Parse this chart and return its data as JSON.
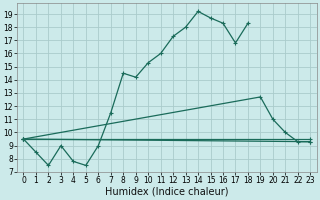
{
  "xlabel": "Humidex (Indice chaleur)",
  "background_color": "#cceaea",
  "grid_color": "#aacccc",
  "line_color": "#1a6b5a",
  "lines": [
    {
      "x": [
        0,
        1,
        2,
        3,
        4,
        5,
        6,
        7,
        8,
        9,
        10,
        11,
        12,
        13,
        14,
        15,
        16,
        17,
        18
      ],
      "y": [
        9.5,
        8.5,
        7.5,
        9.0,
        7.8,
        7.5,
        9.0,
        11.5,
        14.5,
        14.2,
        15.3,
        16.0,
        17.3,
        18.0,
        19.2,
        18.7,
        18.3,
        16.8,
        18.3
      ]
    },
    {
      "x": [
        0,
        19,
        20,
        21,
        22,
        23
      ],
      "y": [
        9.5,
        12.7,
        11.0,
        10.0,
        9.3,
        9.3
      ]
    },
    {
      "x": [
        0,
        23
      ],
      "y": [
        9.5,
        9.5
      ]
    },
    {
      "x": [
        0,
        23
      ],
      "y": [
        9.5,
        9.3
      ]
    }
  ],
  "xlim": [
    -0.5,
    23.5
  ],
  "ylim": [
    7,
    19.8
  ],
  "xticks": [
    0,
    1,
    2,
    3,
    4,
    5,
    6,
    7,
    8,
    9,
    10,
    11,
    12,
    13,
    14,
    15,
    16,
    17,
    18,
    19,
    20,
    21,
    22,
    23
  ],
  "yticks": [
    7,
    8,
    9,
    10,
    11,
    12,
    13,
    14,
    15,
    16,
    17,
    18,
    19
  ],
  "tick_fontsize": 5.5,
  "xlabel_fontsize": 7.0
}
